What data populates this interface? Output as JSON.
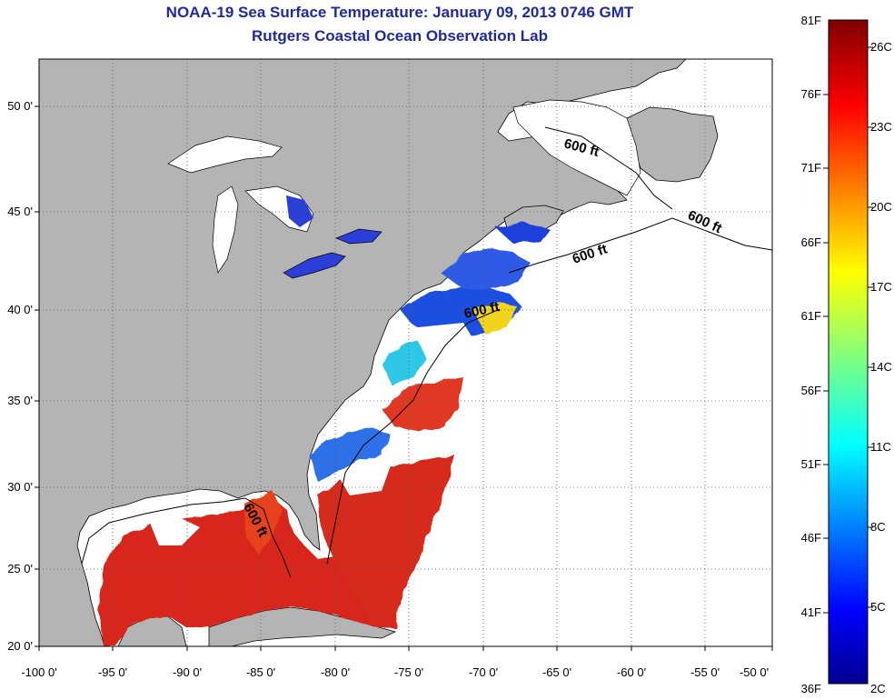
{
  "title": "NOAA-19 Sea Surface Temperature:  January 09, 2013 0746 GMT",
  "subtitle": "Rutgers Coastal Ocean Observation Lab",
  "map": {
    "lon_range": [
      -100,
      -50
    ],
    "lat_range": [
      20,
      52.5
    ],
    "x_ticks": [
      "-100 0'",
      "-95 0'",
      "-90 0'",
      "-85 0'",
      "-80 0'",
      "-75 0'",
      "-70 0'",
      "-65 0'",
      "-60 0'",
      "-55 0'",
      "-50 0'"
    ],
    "y_ticks": [
      "50 0'",
      "45 0'",
      "40 0'",
      "35 0'",
      "30 0'",
      "25 0'",
      "20 0'"
    ],
    "land_color": "#b4b4b4",
    "water_color": "#ffffff",
    "grid": "dotted",
    "contour_labels": [
      "600 ft",
      "600 ft",
      "600 ft",
      "600 ft",
      "600 ft"
    ]
  },
  "colorbar": {
    "left_labels": [
      "81F",
      "76F",
      "71F",
      "66F",
      "61F",
      "56F",
      "51F",
      "46F",
      "41F",
      "36F"
    ],
    "right_labels": [
      "26C",
      "23C",
      "20C",
      "17C",
      "14C",
      "11C",
      "8C",
      "5C",
      "2C"
    ],
    "colormap": "jet"
  }
}
